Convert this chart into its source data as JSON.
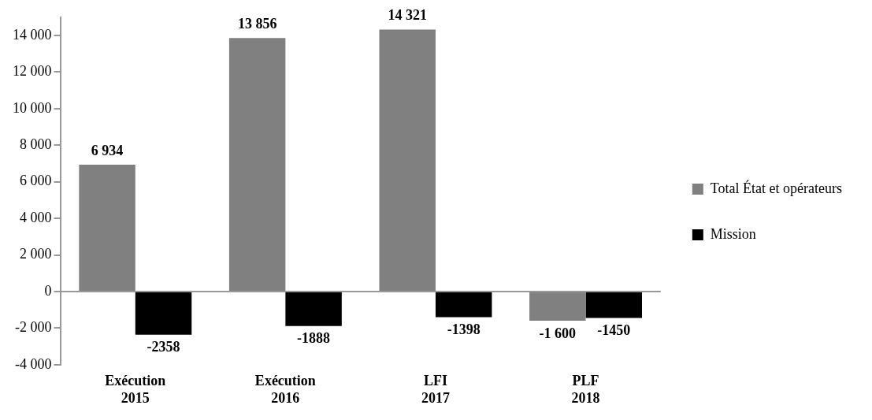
{
  "chart_data": {
    "type": "bar",
    "categories": [
      "Exécution 2015",
      "Exécution 2016",
      "LFI 2017",
      "PLF 2018"
    ],
    "series": [
      {
        "name": "Total État et opérateurs",
        "color": "#808080",
        "values": [
          6934,
          13856,
          14321,
          -1600
        ],
        "value_labels": [
          "6 934",
          "13 856",
          "14 321",
          "-1 600"
        ]
      },
      {
        "name": "Mission",
        "color": "#000000",
        "values": [
          -2358,
          -1888,
          -1398,
          -1450
        ],
        "value_labels": [
          "-2358",
          "-1888",
          "-1398",
          "-1450"
        ]
      }
    ],
    "ylim": [
      -4000,
      15000
    ],
    "yticks": [
      {
        "value": -4000,
        "label": "-4 000"
      },
      {
        "value": -2000,
        "label": "-2 000"
      },
      {
        "value": 0,
        "label": "0"
      },
      {
        "value": 2000,
        "label": "2 000"
      },
      {
        "value": 4000,
        "label": "4 000"
      },
      {
        "value": 6000,
        "label": "6 000"
      },
      {
        "value": 8000,
        "label": "8 000"
      },
      {
        "value": 10000,
        "label": "10 000"
      },
      {
        "value": 12000,
        "label": "12 000"
      },
      {
        "value": 14000,
        "label": "14 000"
      }
    ],
    "legend": "right"
  }
}
